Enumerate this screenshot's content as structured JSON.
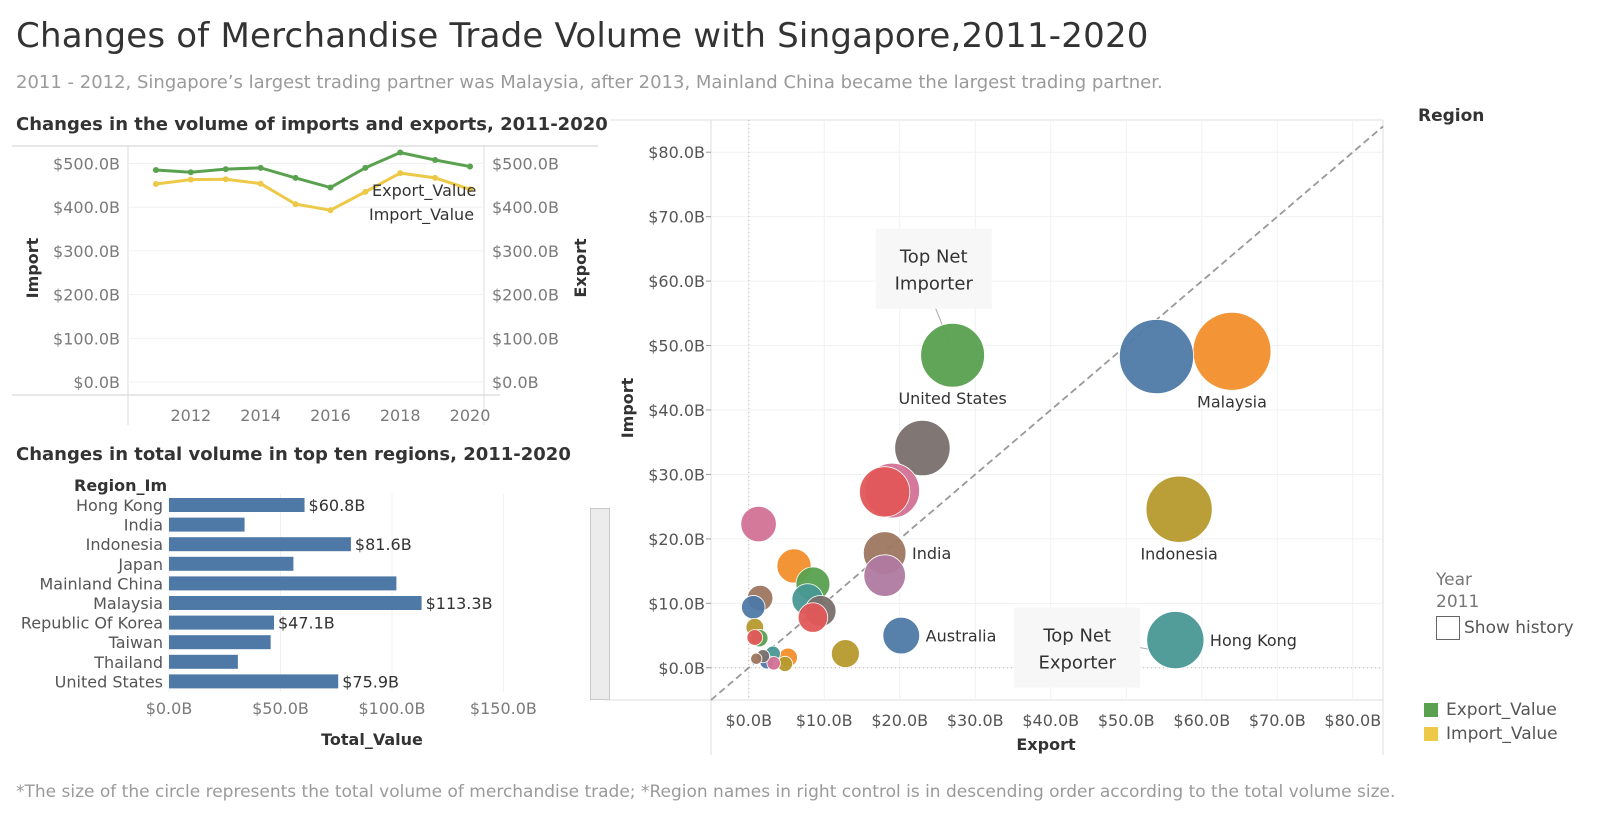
{
  "header": {
    "title": "Changes of Merchandise Trade Volume with Singapore,2011-2020",
    "subtitle": "2011 - 2012, Singapore’s largest trading partner was Malaysia, after 2013, Mainland China became the largest trading partner.",
    "footnote": "*The size of the circle represents the total volume of merchandise trade; *Region names in right control  is in descending order according to the total volume size."
  },
  "colors": {
    "export": "#59a14f",
    "import": "#edc948",
    "bar": "#4e79a7",
    "diagonal": "#999999",
    "grid": "#efefef"
  },
  "legend": {
    "region_title": "Region",
    "year_label": "Year",
    "year_value": "2011",
    "show_history": "Show history",
    "export_label": "Export_Value",
    "import_label": "Import_Value"
  },
  "chart_data": [
    {
      "type": "line",
      "title": "Changes in the volume of imports and exports, 2011-2020",
      "ylabel_left": "Import",
      "ylabel_right": "Export",
      "x": [
        2011,
        2012,
        2013,
        2014,
        2015,
        2016,
        2017,
        2018,
        2019,
        2020
      ],
      "x_ticks": [
        2012,
        2014,
        2016,
        2018,
        2020
      ],
      "y_ticks": [
        "$500.0B",
        "$400.0B",
        "$300.0B",
        "$200.0B",
        "$100.0B",
        "$0.0B"
      ],
      "y_tick_values": [
        500,
        400,
        300,
        200,
        100,
        0
      ],
      "ylim": [
        0,
        540
      ],
      "series": [
        {
          "name": "Export_Value",
          "values": [
            485,
            480,
            487,
            490,
            467,
            445,
            490,
            525,
            508,
            493
          ]
        },
        {
          "name": "Import_Value",
          "values": [
            453,
            463,
            464,
            454,
            407,
            393,
            435,
            478,
            467,
            441
          ]
        }
      ]
    },
    {
      "type": "bar",
      "title": "Changes in total volume  in top ten regions, 2011-2020",
      "category_header": "Region_Im",
      "xlabel": "Total_Value",
      "xlim": [
        0,
        170
      ],
      "x_ticks": [
        "$0.0B",
        "$50.0B",
        "$100.0B",
        "$150.0B"
      ],
      "x_tick_values": [
        0,
        50,
        100,
        150
      ],
      "categories": [
        "Hong Kong",
        "India",
        "Indonesia",
        "Japan",
        "Mainland China",
        "Malaysia",
        "Republic Of Korea",
        "Taiwan",
        "Thailand",
        "United States"
      ],
      "values": [
        60.8,
        33.9,
        81.6,
        55.8,
        102.0,
        113.3,
        47.1,
        45.6,
        30.9,
        75.9
      ],
      "value_labels": [
        "$60.8B",
        "",
        "$81.6B",
        "",
        "",
        "$113.3B",
        "$47.1B",
        "",
        "",
        "$75.9B"
      ]
    },
    {
      "type": "scatter",
      "title": "",
      "xlabel": "Export",
      "ylabel": "Import",
      "xlim": [
        -5,
        84
      ],
      "ylim": [
        -5,
        85
      ],
      "x_ticks": [
        "$0.0B",
        "$10.0B",
        "$20.0B",
        "$30.0B",
        "$40.0B",
        "$50.0B",
        "$60.0B",
        "$70.0B",
        "$80.0B"
      ],
      "x_tick_values": [
        0,
        10,
        20,
        30,
        40,
        50,
        60,
        70,
        80
      ],
      "y_ticks": [
        "$0.0B",
        "$10.0B",
        "$20.0B",
        "$30.0B",
        "$40.0B",
        "$50.0B",
        "$60.0B",
        "$70.0B",
        "$80.0B"
      ],
      "y_tick_values": [
        0,
        10,
        20,
        30,
        40,
        50,
        60,
        70,
        80
      ],
      "annotations": [
        {
          "text": [
            "Top Net",
            "Importer"
          ],
          "x": 24.5,
          "y": 61.0
        },
        {
          "text": [
            "Top Net",
            "Exporter"
          ],
          "x": 43.5,
          "y": 2.5
        }
      ],
      "points": [
        {
          "x": 54.0,
          "y": 48.3,
          "size": 102.5,
          "color": "#4e79a7",
          "label": "",
          "label_pos": ""
        },
        {
          "x": 64.0,
          "y": 49.1,
          "size": 113.3,
          "color": "#f28e2b",
          "label": "Malaysia",
          "label_pos": "below"
        },
        {
          "x": 27.0,
          "y": 48.5,
          "size": 75.9,
          "color": "#59a14f",
          "label": "United States",
          "label_pos": "below"
        },
        {
          "x": 57.0,
          "y": 24.6,
          "size": 81.6,
          "color": "#b6992d",
          "label": "Indonesia",
          "label_pos": "below"
        },
        {
          "x": 56.5,
          "y": 4.3,
          "size": 60.8,
          "color": "#499894",
          "label": "Hong Kong",
          "label_pos": "right"
        },
        {
          "x": 23.0,
          "y": 34.1,
          "size": 57.1,
          "color": "#79706e",
          "label": "",
          "label_pos": ""
        },
        {
          "x": 19.0,
          "y": 27.5,
          "size": 55.8,
          "color": "#d37295",
          "label": "",
          "label_pos": ""
        },
        {
          "x": 18.0,
          "y": 27.3,
          "size": 47.1,
          "color": "#e15759",
          "label": "",
          "label_pos": ""
        },
        {
          "x": 18.0,
          "y": 17.8,
          "size": 33.9,
          "color": "#9d7660",
          "label": "India",
          "label_pos": "right"
        },
        {
          "x": 18.0,
          "y": 14.3,
          "size": 32.3,
          "color": "#b07aa1",
          "label": "",
          "label_pos": ""
        },
        {
          "x": 1.3,
          "y": 22.3,
          "size": 23.5,
          "color": "#d37295",
          "label": "",
          "label_pos": ""
        },
        {
          "x": 20.2,
          "y": 5.0,
          "size": 25.2,
          "color": "#4e79a7",
          "label": "Australia",
          "label_pos": "right"
        },
        {
          "x": 6.0,
          "y": 15.8,
          "size": 21.8,
          "color": "#f28e2b",
          "label": "",
          "label_pos": ""
        },
        {
          "x": 8.5,
          "y": 13.0,
          "size": 21.5,
          "color": "#59a14f",
          "label": "",
          "label_pos": ""
        },
        {
          "x": 7.8,
          "y": 10.6,
          "size": 18.4,
          "color": "#499894",
          "label": "",
          "label_pos": ""
        },
        {
          "x": 9.5,
          "y": 8.8,
          "size": 18.0,
          "color": "#79706e",
          "label": "",
          "label_pos": ""
        },
        {
          "x": 8.5,
          "y": 7.8,
          "size": 16.3,
          "color": "#e15759",
          "label": "",
          "label_pos": ""
        },
        {
          "x": 12.8,
          "y": 2.2,
          "size": 14.6,
          "color": "#b6992d",
          "label": "",
          "label_pos": ""
        },
        {
          "x": 1.5,
          "y": 10.8,
          "size": 12.2,
          "color": "#9d7660",
          "label": "",
          "label_pos": ""
        },
        {
          "x": 0.6,
          "y": 9.4,
          "size": 10.3,
          "color": "#4e79a7",
          "label": "",
          "label_pos": ""
        },
        {
          "x": 0.8,
          "y": 6.3,
          "size": 5.8,
          "color": "#b6992d",
          "label": "",
          "label_pos": ""
        },
        {
          "x": 0.8,
          "y": 4.7,
          "size": 4.6,
          "color": "#e15759",
          "label": "",
          "label_pos": ""
        },
        {
          "x": 1.4,
          "y": 4.6,
          "size": 5.6,
          "color": "#59a14f",
          "label": "",
          "label_pos": ""
        },
        {
          "x": 5.2,
          "y": 1.6,
          "size": 6.6,
          "color": "#f28e2b",
          "label": "",
          "label_pos": ""
        },
        {
          "x": 4.8,
          "y": 0.6,
          "size": 4.3,
          "color": "#b6992d",
          "label": "",
          "label_pos": ""
        },
        {
          "x": 3.2,
          "y": 2.2,
          "size": 4.2,
          "color": "#499894",
          "label": "",
          "label_pos": ""
        },
        {
          "x": 2.4,
          "y": 0.9,
          "size": 3.6,
          "color": "#4e79a7",
          "label": "",
          "label_pos": ""
        },
        {
          "x": 3.3,
          "y": 0.7,
          "size": 3.4,
          "color": "#d37295",
          "label": "",
          "label_pos": ""
        },
        {
          "x": 1.9,
          "y": 1.8,
          "size": 3.2,
          "color": "#79706e",
          "label": "",
          "label_pos": ""
        },
        {
          "x": 1.0,
          "y": 1.4,
          "size": 2.4,
          "color": "#9d7660",
          "label": "",
          "label_pos": ""
        }
      ]
    }
  ]
}
